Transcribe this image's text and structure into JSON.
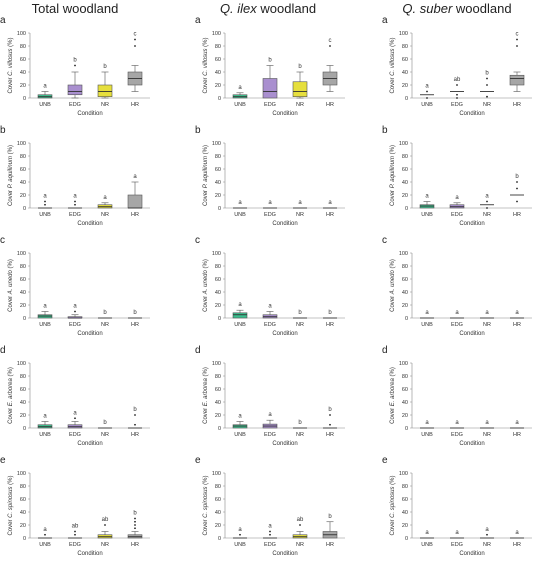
{
  "figure": {
    "columns": [
      "Total woodland",
      "Q. ilex woodland",
      "Q. suber woodland"
    ],
    "column_title_parts": [
      {
        "italic": "",
        "rest": "Total woodland"
      },
      {
        "italic": "Q. ilex",
        "rest": " woodland"
      },
      {
        "italic": "Q. suber",
        "rest": " woodland"
      }
    ],
    "row_labels": [
      "a",
      "b",
      "c",
      "d",
      "e"
    ],
    "ylabel_parts": [
      {
        "prefix": "Cover ",
        "italic": "C. villosus",
        "suffix": " (%)"
      },
      {
        "prefix": "Cover ",
        "italic": "P. aquilinum",
        "suffix": " (%)"
      },
      {
        "prefix": "Cover ",
        "italic": "A. unedo",
        "suffix": " (%)"
      },
      {
        "prefix": "Cover ",
        "italic": "E. arborea",
        "suffix": " (%)"
      },
      {
        "prefix": "Cover ",
        "italic": "C. spinosus",
        "suffix": " (%)"
      }
    ],
    "xlabel": "Condition"
  },
  "chart_data": {
    "type": "box",
    "categories": [
      "UNB",
      "EDG",
      "NR",
      "HR"
    ],
    "category_colors": {
      "UNB": "#3dbf8e",
      "EDG": "#a98fcf",
      "NR": "#e6df3d",
      "HR": "#a6a6a6"
    },
    "ylim": [
      0,
      100
    ],
    "yticks": [
      0,
      20,
      40,
      60,
      80,
      100
    ],
    "panels": [
      {
        "row": "a",
        "column": "Total woodland",
        "ylabel": "Cover C. villosus (%)",
        "xlabel": "Condition",
        "boxes": [
          {
            "cat": "UNB",
            "q1": 0,
            "med": 2,
            "q3": 5,
            "wlo": 0,
            "whi": 10,
            "out": [],
            "sig": "a"
          },
          {
            "cat": "EDG",
            "q1": 5,
            "med": 10,
            "q3": 20,
            "wlo": 0,
            "whi": 40,
            "out": [
              50
            ],
            "sig": "b"
          },
          {
            "cat": "NR",
            "q1": 2,
            "med": 10,
            "q3": 20,
            "wlo": 0,
            "whi": 40,
            "out": [],
            "sig": "b"
          },
          {
            "cat": "HR",
            "q1": 20,
            "med": 30,
            "q3": 40,
            "wlo": 10,
            "whi": 50,
            "out": [
              80,
              90
            ],
            "sig": "c"
          }
        ]
      },
      {
        "row": "a",
        "column": "Q. ilex woodland",
        "ylabel": "Cover C. villosus (%)",
        "xlabel": "Condition",
        "boxes": [
          {
            "cat": "UNB",
            "q1": 0,
            "med": 2,
            "q3": 5,
            "wlo": 0,
            "whi": 8,
            "out": [],
            "sig": "a"
          },
          {
            "cat": "EDG",
            "q1": 0,
            "med": 10,
            "q3": 30,
            "wlo": 0,
            "whi": 50,
            "out": [],
            "sig": "b"
          },
          {
            "cat": "NR",
            "q1": 2,
            "med": 10,
            "q3": 25,
            "wlo": 0,
            "whi": 40,
            "out": [],
            "sig": "b"
          },
          {
            "cat": "HR",
            "q1": 20,
            "med": 30,
            "q3": 40,
            "wlo": 10,
            "whi": 50,
            "out": [
              80
            ],
            "sig": "c"
          }
        ]
      },
      {
        "row": "a",
        "column": "Q. suber woodland",
        "ylabel": "Cover C. villosus (%)",
        "xlabel": "Condition",
        "boxes": [
          {
            "cat": "UNB",
            "q1": 5,
            "med": 5,
            "q3": 5,
            "wlo": 5,
            "whi": 5,
            "out": [
              0,
              10
            ],
            "sig": "a"
          },
          {
            "cat": "EDG",
            "q1": 10,
            "med": 10,
            "q3": 10,
            "wlo": 10,
            "whi": 10,
            "out": [
              0,
              5,
              20
            ],
            "sig": "ab"
          },
          {
            "cat": "NR",
            "q1": 10,
            "med": 10,
            "q3": 10,
            "wlo": 10,
            "whi": 10,
            "out": [
              2,
              20,
              30
            ],
            "sig": "b"
          },
          {
            "cat": "HR",
            "q1": 20,
            "med": 30,
            "q3": 35,
            "wlo": 10,
            "whi": 40,
            "out": [
              80,
              90
            ],
            "sig": "c"
          }
        ]
      },
      {
        "row": "b",
        "column": "Total woodland",
        "ylabel": "Cover P. aquilinum (%)",
        "xlabel": "Condition",
        "boxes": [
          {
            "cat": "UNB",
            "q1": 0,
            "med": 0,
            "q3": 0,
            "wlo": 0,
            "whi": 0,
            "out": [
              5,
              10
            ],
            "sig": "a"
          },
          {
            "cat": "EDG",
            "q1": 0,
            "med": 0,
            "q3": 0,
            "wlo": 0,
            "whi": 0,
            "out": [
              5,
              10
            ],
            "sig": "a"
          },
          {
            "cat": "NR",
            "q1": 0,
            "med": 2,
            "q3": 5,
            "wlo": 0,
            "whi": 8,
            "out": [],
            "sig": "a"
          },
          {
            "cat": "HR",
            "q1": 0,
            "med": 0,
            "q3": 20,
            "wlo": 0,
            "whi": 40,
            "out": [],
            "sig": "a"
          }
        ]
      },
      {
        "row": "b",
        "column": "Q. ilex woodland",
        "ylabel": "Cover P. aquilinum (%)",
        "xlabel": "Condition",
        "boxes": [
          {
            "cat": "UNB",
            "q1": 0,
            "med": 0,
            "q3": 0,
            "wlo": 0,
            "whi": 0,
            "out": [],
            "sig": "a"
          },
          {
            "cat": "EDG",
            "q1": 0,
            "med": 0,
            "q3": 0,
            "wlo": 0,
            "whi": 0,
            "out": [],
            "sig": "a"
          },
          {
            "cat": "NR",
            "q1": 0,
            "med": 0,
            "q3": 0,
            "wlo": 0,
            "whi": 0,
            "out": [],
            "sig": "a"
          },
          {
            "cat": "HR",
            "q1": 0,
            "med": 0,
            "q3": 0,
            "wlo": 0,
            "whi": 0,
            "out": [],
            "sig": "a"
          }
        ]
      },
      {
        "row": "b",
        "column": "Q. suber woodland",
        "ylabel": "Cover P. aquilinum (%)",
        "xlabel": "Condition",
        "boxes": [
          {
            "cat": "UNB",
            "q1": 0,
            "med": 3,
            "q3": 5,
            "wlo": 0,
            "whi": 10,
            "out": [],
            "sig": "a"
          },
          {
            "cat": "EDG",
            "q1": 0,
            "med": 2,
            "q3": 5,
            "wlo": 0,
            "whi": 8,
            "out": [],
            "sig": "a"
          },
          {
            "cat": "NR",
            "q1": 5,
            "med": 5,
            "q3": 5,
            "wlo": 5,
            "whi": 5,
            "out": [
              0,
              10
            ],
            "sig": "a"
          },
          {
            "cat": "HR",
            "q1": 20,
            "med": 20,
            "q3": 20,
            "wlo": 20,
            "whi": 20,
            "out": [
              10,
              30,
              40
            ],
            "sig": "b"
          }
        ]
      },
      {
        "row": "c",
        "column": "Total woodland",
        "ylabel": "Cover A. unedo (%)",
        "xlabel": "Condition",
        "boxes": [
          {
            "cat": "UNB",
            "q1": 0,
            "med": 3,
            "q3": 5,
            "wlo": 0,
            "whi": 10,
            "out": [],
            "sig": "a"
          },
          {
            "cat": "EDG",
            "q1": 0,
            "med": 0,
            "q3": 2,
            "wlo": 0,
            "whi": 5,
            "out": [
              10
            ],
            "sig": "a"
          },
          {
            "cat": "NR",
            "q1": 0,
            "med": 0,
            "q3": 0,
            "wlo": 0,
            "whi": 0,
            "out": [],
            "sig": "b"
          },
          {
            "cat": "HR",
            "q1": 0,
            "med": 0,
            "q3": 0,
            "wlo": 0,
            "whi": 0,
            "out": [],
            "sig": "b"
          }
        ]
      },
      {
        "row": "c",
        "column": "Q. ilex woodland",
        "ylabel": "Cover A. unedo (%)",
        "xlabel": "Condition",
        "boxes": [
          {
            "cat": "UNB",
            "q1": 0,
            "med": 5,
            "q3": 8,
            "wlo": 0,
            "whi": 12,
            "out": [],
            "sig": "a"
          },
          {
            "cat": "EDG",
            "q1": 0,
            "med": 2,
            "q3": 5,
            "wlo": 0,
            "whi": 10,
            "out": [],
            "sig": "a"
          },
          {
            "cat": "NR",
            "q1": 0,
            "med": 0,
            "q3": 0,
            "wlo": 0,
            "whi": 0,
            "out": [],
            "sig": "b"
          },
          {
            "cat": "HR",
            "q1": 0,
            "med": 0,
            "q3": 0,
            "wlo": 0,
            "whi": 0,
            "out": [],
            "sig": "b"
          }
        ]
      },
      {
        "row": "c",
        "column": "Q. suber woodland",
        "ylabel": "Cover A. unedo (%)",
        "xlabel": "Condition",
        "boxes": [
          {
            "cat": "UNB",
            "q1": 0,
            "med": 0,
            "q3": 0,
            "wlo": 0,
            "whi": 0,
            "out": [],
            "sig": "a"
          },
          {
            "cat": "EDG",
            "q1": 0,
            "med": 0,
            "q3": 0,
            "wlo": 0,
            "whi": 0,
            "out": [],
            "sig": "a"
          },
          {
            "cat": "NR",
            "q1": 0,
            "med": 0,
            "q3": 0,
            "wlo": 0,
            "whi": 0,
            "out": [],
            "sig": "a"
          },
          {
            "cat": "HR",
            "q1": 0,
            "med": 0,
            "q3": 0,
            "wlo": 0,
            "whi": 0,
            "out": [],
            "sig": "a"
          }
        ]
      },
      {
        "row": "d",
        "column": "Total woodland",
        "ylabel": "Cover E. arborea (%)",
        "xlabel": "Condition",
        "boxes": [
          {
            "cat": "UNB",
            "q1": 0,
            "med": 2,
            "q3": 5,
            "wlo": 0,
            "whi": 10,
            "out": [],
            "sig": "a"
          },
          {
            "cat": "EDG",
            "q1": 0,
            "med": 2,
            "q3": 5,
            "wlo": 0,
            "whi": 10,
            "out": [
              15
            ],
            "sig": "a"
          },
          {
            "cat": "NR",
            "q1": 0,
            "med": 0,
            "q3": 0,
            "wlo": 0,
            "whi": 0,
            "out": [],
            "sig": "b"
          },
          {
            "cat": "HR",
            "q1": 0,
            "med": 0,
            "q3": 0,
            "wlo": 0,
            "whi": 0,
            "out": [
              5,
              20
            ],
            "sig": "b"
          }
        ]
      },
      {
        "row": "d",
        "column": "Q. ilex woodland",
        "ylabel": "Cover E. arborea (%)",
        "xlabel": "Condition",
        "boxes": [
          {
            "cat": "UNB",
            "q1": 0,
            "med": 3,
            "q3": 5,
            "wlo": 0,
            "whi": 10,
            "out": [],
            "sig": "a"
          },
          {
            "cat": "EDG",
            "q1": 0,
            "med": 3,
            "q3": 6,
            "wlo": 0,
            "whi": 12,
            "out": [],
            "sig": "a"
          },
          {
            "cat": "NR",
            "q1": 0,
            "med": 0,
            "q3": 0,
            "wlo": 0,
            "whi": 0,
            "out": [],
            "sig": "b"
          },
          {
            "cat": "HR",
            "q1": 0,
            "med": 0,
            "q3": 0,
            "wlo": 0,
            "whi": 0,
            "out": [
              5,
              20
            ],
            "sig": "b"
          }
        ]
      },
      {
        "row": "d",
        "column": "Q. suber woodland",
        "ylabel": "Cover E. arborea (%)",
        "xlabel": "Condition",
        "boxes": [
          {
            "cat": "UNB",
            "q1": 0,
            "med": 0,
            "q3": 0,
            "wlo": 0,
            "whi": 0,
            "out": [],
            "sig": "a"
          },
          {
            "cat": "EDG",
            "q1": 0,
            "med": 0,
            "q3": 0,
            "wlo": 0,
            "whi": 0,
            "out": [],
            "sig": "a"
          },
          {
            "cat": "NR",
            "q1": 0,
            "med": 0,
            "q3": 0,
            "wlo": 0,
            "whi": 0,
            "out": [],
            "sig": "a"
          },
          {
            "cat": "HR",
            "q1": 0,
            "med": 0,
            "q3": 0,
            "wlo": 0,
            "whi": 0,
            "out": [],
            "sig": "a"
          }
        ]
      },
      {
        "row": "e",
        "column": "Total woodland",
        "ylabel": "Cover C. spinosus (%)",
        "xlabel": "Condition",
        "boxes": [
          {
            "cat": "UNB",
            "q1": 0,
            "med": 0,
            "q3": 0,
            "wlo": 0,
            "whi": 0,
            "out": [
              5
            ],
            "sig": "a"
          },
          {
            "cat": "EDG",
            "q1": 0,
            "med": 0,
            "q3": 0,
            "wlo": 0,
            "whi": 0,
            "out": [
              5,
              10
            ],
            "sig": "ab"
          },
          {
            "cat": "NR",
            "q1": 0,
            "med": 2,
            "q3": 5,
            "wlo": 0,
            "whi": 10,
            "out": [
              20
            ],
            "sig": "ab"
          },
          {
            "cat": "HR",
            "q1": 0,
            "med": 2,
            "q3": 5,
            "wlo": 0,
            "whi": 10,
            "out": [
              15,
              20,
              25,
              30
            ],
            "sig": "b"
          }
        ]
      },
      {
        "row": "e",
        "column": "Q. ilex woodland",
        "ylabel": "Cover C. spinosus (%)",
        "xlabel": "Condition",
        "boxes": [
          {
            "cat": "UNB",
            "q1": 0,
            "med": 0,
            "q3": 0,
            "wlo": 0,
            "whi": 0,
            "out": [
              5
            ],
            "sig": "a"
          },
          {
            "cat": "EDG",
            "q1": 0,
            "med": 0,
            "q3": 0,
            "wlo": 0,
            "whi": 0,
            "out": [
              5,
              10
            ],
            "sig": "a"
          },
          {
            "cat": "NR",
            "q1": 0,
            "med": 2,
            "q3": 5,
            "wlo": 0,
            "whi": 10,
            "out": [
              20
            ],
            "sig": "ab"
          },
          {
            "cat": "HR",
            "q1": 0,
            "med": 5,
            "q3": 10,
            "wlo": 0,
            "whi": 25,
            "out": [],
            "sig": "b"
          }
        ]
      },
      {
        "row": "e",
        "column": "Q. suber woodland",
        "ylabel": "Cover C. spinosus (%)",
        "xlabel": "Condition",
        "boxes": [
          {
            "cat": "UNB",
            "q1": 0,
            "med": 0,
            "q3": 0,
            "wlo": 0,
            "whi": 0,
            "out": [],
            "sig": "a"
          },
          {
            "cat": "EDG",
            "q1": 0,
            "med": 0,
            "q3": 0,
            "wlo": 0,
            "whi": 0,
            "out": [],
            "sig": "a"
          },
          {
            "cat": "NR",
            "q1": 0,
            "med": 0,
            "q3": 0,
            "wlo": 0,
            "whi": 0,
            "out": [
              5
            ],
            "sig": "a"
          },
          {
            "cat": "HR",
            "q1": 0,
            "med": 0,
            "q3": 0,
            "wlo": 0,
            "whi": 0,
            "out": [],
            "sig": "a"
          }
        ]
      }
    ]
  }
}
